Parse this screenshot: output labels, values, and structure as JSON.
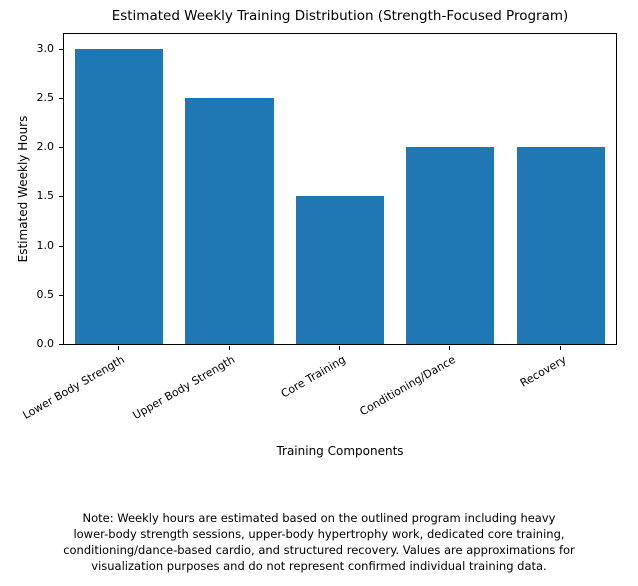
{
  "chart_data": {
    "type": "bar",
    "title": "Estimated Weekly Training Distribution (Strength-Focused Program)",
    "xlabel": "Training Components",
    "ylabel": "Estimated Weekly Hours",
    "categories": [
      "Lower Body Strength",
      "Upper Body Strength",
      "Core Training",
      "Conditioning/Dance",
      "Recovery"
    ],
    "values": [
      3.0,
      2.5,
      1.5,
      2.0,
      2.0
    ],
    "yticks": [
      0.0,
      0.5,
      1.0,
      1.5,
      2.0,
      2.5,
      3.0
    ],
    "ylim": [
      0,
      3.15
    ],
    "bar_color": "#1f77b4",
    "bar_width_fraction": 0.8,
    "tick_label_rotation_deg": 30,
    "grid": false,
    "legend": "none"
  },
  "note": "Note: Weekly hours are estimated based on the outlined program including heavy\nlower-body strength sessions, upper-body hypertrophy work, dedicated core training,\nconditioning/dance-based cardio, and structured recovery. Values are approximations for\nvisualization purposes and do not represent confirmed individual training data."
}
